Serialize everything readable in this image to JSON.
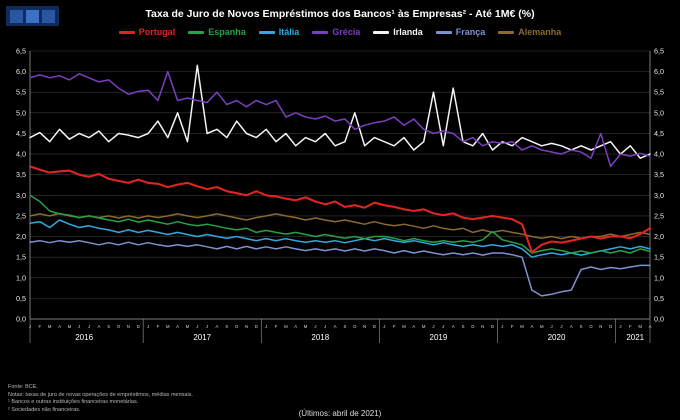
{
  "brand": {
    "logo_bg": "#0d2c5c",
    "logo_squares": [
      "#2a55a0",
      "#3b70c5",
      "#2a55a0"
    ]
  },
  "chart_data": {
    "type": "line",
    "title": "Taxa de Juro de Novos Empréstimos dos Bancos¹ às Empresas² - Até 1M€ (%)",
    "ylabel": "%",
    "ylim": [
      0,
      6.5
    ],
    "ytick_step": 0.5,
    "decimal_separator": ",",
    "grid": "horizontal",
    "legend_position": "top",
    "month_letters": [
      "J",
      "F",
      "M",
      "A",
      "M",
      "J",
      "J",
      "A",
      "S",
      "O",
      "N",
      "D"
    ],
    "years": [
      {
        "label": "2016",
        "months": 12
      },
      {
        "label": "2017",
        "months": 12
      },
      {
        "label": "2018",
        "months": 12
      },
      {
        "label": "2019",
        "months": 12
      },
      {
        "label": "2020",
        "months": 12
      },
      {
        "label": "2021",
        "months": 4
      }
    ],
    "series": [
      {
        "name": "Portugal",
        "color": "#e0241f",
        "values": [
          3.7,
          3.62,
          3.55,
          3.58,
          3.6,
          3.5,
          3.45,
          3.52,
          3.4,
          3.35,
          3.3,
          3.38,
          3.3,
          3.28,
          3.2,
          3.26,
          3.3,
          3.22,
          3.15,
          3.2,
          3.1,
          3.05,
          3.0,
          3.1,
          3.0,
          2.97,
          2.92,
          2.88,
          2.95,
          2.85,
          2.78,
          2.85,
          2.72,
          2.76,
          2.7,
          2.82,
          2.76,
          2.72,
          2.66,
          2.62,
          2.66,
          2.56,
          2.52,
          2.56,
          2.46,
          2.42,
          2.46,
          2.5,
          2.46,
          2.42,
          2.3,
          1.62,
          1.8,
          1.88,
          1.85,
          1.9,
          1.95,
          2.0,
          1.95,
          2.0,
          2.0,
          1.96,
          2.06,
          2.2
        ]
      },
      {
        "name": "Espanha",
        "color": "#27a147",
        "values": [
          3.0,
          2.85,
          2.62,
          2.55,
          2.52,
          2.46,
          2.5,
          2.45,
          2.4,
          2.36,
          2.42,
          2.35,
          2.4,
          2.35,
          2.3,
          2.36,
          2.3,
          2.26,
          2.3,
          2.25,
          2.2,
          2.16,
          2.2,
          2.1,
          2.15,
          2.1,
          2.06,
          2.1,
          2.05,
          2.0,
          2.05,
          2.0,
          1.96,
          2.0,
          1.95,
          2.0,
          2.0,
          1.96,
          1.9,
          1.95,
          1.9,
          1.86,
          1.9,
          1.86,
          1.9,
          1.86,
          1.92,
          2.12,
          1.92,
          1.86,
          1.8,
          1.6,
          1.66,
          1.7,
          1.66,
          1.6,
          1.65,
          1.6,
          1.66,
          1.6,
          1.66,
          1.6,
          1.7,
          1.64
        ]
      },
      {
        "name": "Itália",
        "color": "#2fa9e0",
        "values": [
          2.32,
          2.36,
          2.22,
          2.4,
          2.3,
          2.22,
          2.26,
          2.2,
          2.16,
          2.1,
          2.16,
          2.1,
          2.15,
          2.1,
          2.05,
          2.1,
          2.05,
          2.0,
          2.05,
          2.0,
          1.96,
          2.0,
          1.95,
          1.9,
          1.95,
          1.9,
          1.95,
          1.9,
          1.86,
          1.9,
          1.86,
          1.9,
          1.85,
          1.9,
          1.95,
          1.9,
          1.95,
          1.9,
          1.86,
          1.9,
          1.85,
          1.8,
          1.85,
          1.8,
          1.76,
          1.8,
          1.76,
          1.8,
          1.76,
          1.8,
          1.7,
          1.5,
          1.56,
          1.6,
          1.56,
          1.6,
          1.55,
          1.6,
          1.65,
          1.7,
          1.75,
          1.7,
          1.76,
          1.7
        ]
      },
      {
        "name": "Grécia",
        "color": "#7b3fbe",
        "values": [
          5.85,
          5.92,
          5.85,
          5.9,
          5.8,
          5.95,
          5.85,
          5.75,
          5.8,
          5.6,
          5.45,
          5.52,
          5.55,
          5.3,
          6.0,
          5.3,
          5.36,
          5.3,
          5.25,
          5.5,
          5.2,
          5.3,
          5.15,
          5.3,
          5.2,
          5.3,
          4.9,
          5.0,
          4.9,
          4.85,
          4.92,
          4.8,
          4.85,
          4.6,
          4.7,
          4.76,
          4.8,
          4.9,
          4.7,
          4.85,
          4.6,
          4.5,
          4.56,
          4.5,
          4.3,
          4.4,
          4.2,
          4.3,
          4.26,
          4.3,
          4.1,
          4.2,
          4.1,
          4.05,
          4.0,
          4.1,
          4.05,
          3.9,
          4.5,
          3.7,
          4.0,
          3.95,
          4.02,
          3.95
        ]
      },
      {
        "name": "Irlanda",
        "color": "#f4f4f4",
        "values": [
          4.4,
          4.52,
          4.3,
          4.6,
          4.36,
          4.5,
          4.4,
          4.56,
          4.3,
          4.5,
          4.46,
          4.4,
          4.5,
          4.8,
          4.4,
          5.0,
          4.3,
          6.15,
          4.5,
          4.6,
          4.4,
          4.8,
          4.5,
          4.4,
          4.6,
          4.3,
          4.5,
          4.2,
          4.4,
          4.3,
          4.5,
          4.2,
          4.3,
          5.0,
          4.2,
          4.4,
          4.3,
          4.2,
          4.4,
          4.1,
          4.3,
          5.5,
          4.2,
          5.6,
          4.3,
          4.2,
          4.5,
          4.1,
          4.3,
          4.2,
          4.4,
          4.3,
          4.2,
          4.26,
          4.2,
          4.1,
          4.2,
          4.1,
          4.2,
          4.3,
          4.0,
          4.2,
          3.9,
          4.0
        ]
      },
      {
        "name": "França",
        "color": "#7d93cf",
        "values": [
          1.86,
          1.9,
          1.85,
          1.9,
          1.86,
          1.9,
          1.85,
          1.8,
          1.85,
          1.8,
          1.86,
          1.8,
          1.85,
          1.8,
          1.76,
          1.8,
          1.76,
          1.8,
          1.75,
          1.7,
          1.76,
          1.7,
          1.76,
          1.7,
          1.75,
          1.7,
          1.75,
          1.7,
          1.66,
          1.7,
          1.66,
          1.7,
          1.65,
          1.7,
          1.65,
          1.7,
          1.66,
          1.6,
          1.66,
          1.6,
          1.65,
          1.6,
          1.56,
          1.6,
          1.56,
          1.6,
          1.55,
          1.6,
          1.6,
          1.56,
          1.5,
          0.7,
          0.56,
          0.6,
          0.66,
          0.7,
          1.2,
          1.26,
          1.2,
          1.25,
          1.22,
          1.26,
          1.3,
          1.3
        ]
      },
      {
        "name": "Alemanha",
        "color": "#8a6a2f",
        "values": [
          2.5,
          2.55,
          2.5,
          2.56,
          2.5,
          2.46,
          2.5,
          2.46,
          2.5,
          2.45,
          2.5,
          2.45,
          2.5,
          2.46,
          2.5,
          2.55,
          2.5,
          2.46,
          2.5,
          2.55,
          2.5,
          2.45,
          2.4,
          2.46,
          2.5,
          2.55,
          2.5,
          2.46,
          2.4,
          2.45,
          2.4,
          2.36,
          2.4,
          2.35,
          2.3,
          2.36,
          2.3,
          2.26,
          2.3,
          2.25,
          2.2,
          2.26,
          2.2,
          2.16,
          2.2,
          2.1,
          2.16,
          2.1,
          2.15,
          2.1,
          2.06,
          2.0,
          1.96,
          2.0,
          1.95,
          2.0,
          1.96,
          2.0,
          2.0,
          2.06,
          2.0,
          2.05,
          2.1,
          2.05
        ]
      }
    ]
  },
  "footer": {
    "notes": [
      "Fonte: BCE.",
      "Notas: taxas de juro de novas operações de empréstimos, médias mensais.",
      "¹ Bancos e outras instituições financeiras monetárias.",
      "² Sociedades não financeiras."
    ],
    "last_obs": "(Últimos: abril de 2021)"
  }
}
